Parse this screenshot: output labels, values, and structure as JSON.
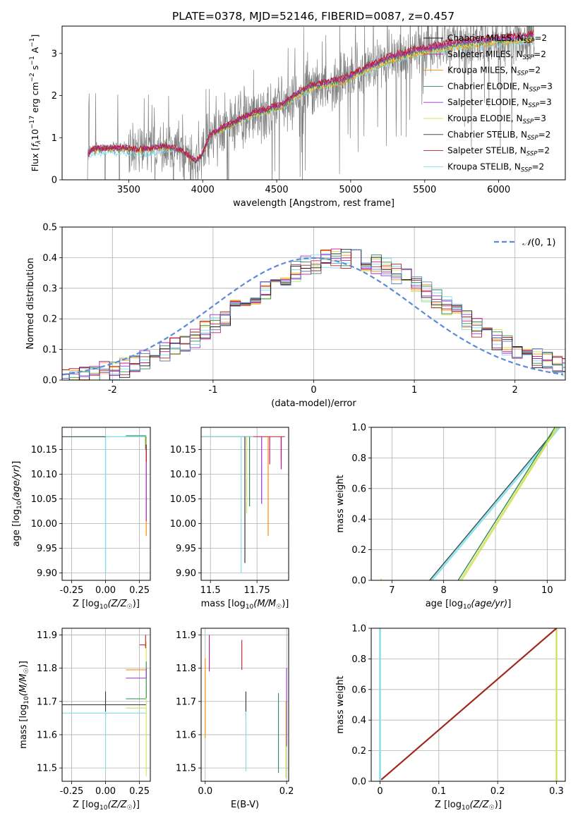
{
  "figure_title": "PLATE=0378, MJD=52146, FIBERID=0087, z=0.457",
  "colors": {
    "data": "#808080",
    "Chabrier MILES": "#1a1a1a",
    "Salpeter MILES": "#c71585",
    "Kroupa MILES": "#ff8c00",
    "Chabrier ELODIE": "#2e8b57",
    "Salpeter ELODIE": "#9932cc",
    "Kroupa ELODIE": "#d4e157",
    "Chabrier STELIB": "#333333",
    "Salpeter STELIB": "#b22222",
    "Kroupa STELIB": "#80deea",
    "normal": "#5b8bd6",
    "brown_line": "#a0291c"
  },
  "chart_data": [
    {
      "id": "spectrum",
      "type": "line",
      "xlabel": "wavelength [Angstrom, rest frame]",
      "xlim": [
        3050,
        6450
      ],
      "ylim": [
        0,
        3.65
      ],
      "xticks": [
        3500,
        4000,
        4500,
        5000,
        5500,
        6000
      ],
      "yticks": [
        0,
        1,
        2,
        3
      ],
      "grid": false,
      "legend_position": "top-right",
      "legend": [
        {
          "label": "Chabrier MILES, N",
          "sub": "SSP",
          "suffix": "=2"
        },
        {
          "label": "Salpeter MILES, N",
          "sub": "SSP",
          "suffix": "=2"
        },
        {
          "label": "Kroupa MILES, N",
          "sub": "SSP",
          "suffix": "=2"
        },
        {
          "label": "Chabrier ELODIE, N",
          "sub": "SSP",
          "suffix": "=3"
        },
        {
          "label": "Salpeter ELODIE, N",
          "sub": "SSP",
          "suffix": "=3"
        },
        {
          "label": "Kroupa ELODIE, N",
          "sub": "SSP",
          "suffix": "=3"
        },
        {
          "label": "Chabrier STELIB, N",
          "sub": "SSP",
          "suffix": "=2"
        },
        {
          "label": "Salpeter STELIB, N",
          "sub": "SSP",
          "suffix": "=2"
        },
        {
          "label": "Kroupa STELIB, N",
          "sub": "SSP",
          "suffix": "=2"
        }
      ],
      "model_continuum": [
        [
          3220,
          0.55
        ],
        [
          3250,
          0.72
        ],
        [
          3350,
          0.75
        ],
        [
          3450,
          0.75
        ],
        [
          3550,
          0.72
        ],
        [
          3650,
          0.74
        ],
        [
          3750,
          0.8
        ],
        [
          3850,
          0.7
        ],
        [
          3950,
          0.45
        ],
        [
          3990,
          0.55
        ],
        [
          4050,
          1.05
        ],
        [
          4150,
          1.25
        ],
        [
          4250,
          1.42
        ],
        [
          4350,
          1.58
        ],
        [
          4450,
          1.66
        ],
        [
          4550,
          1.8
        ],
        [
          4650,
          2.05
        ],
        [
          4750,
          2.22
        ],
        [
          4850,
          2.3
        ],
        [
          4950,
          2.35
        ],
        [
          5050,
          2.55
        ],
        [
          5150,
          2.7
        ],
        [
          5250,
          2.85
        ],
        [
          5350,
          2.95
        ],
        [
          5450,
          3.05
        ],
        [
          5550,
          3.1
        ],
        [
          5650,
          3.18
        ],
        [
          5750,
          3.22
        ],
        [
          5850,
          3.25
        ],
        [
          5950,
          3.3
        ],
        [
          6050,
          3.32
        ],
        [
          6150,
          3.35
        ],
        [
          6230,
          3.4
        ]
      ]
    },
    {
      "id": "residuals",
      "type": "line",
      "xlabel": "(data-model)/error",
      "ylabel": "Normed distribution",
      "xlim": [
        -2.5,
        2.5
      ],
      "ylim": [
        0,
        0.5
      ],
      "xticks": [
        -2,
        -1,
        0,
        1,
        2
      ],
      "yticks": [
        0,
        0.1,
        0.2,
        0.3,
        0.4,
        0.5
      ],
      "grid": true,
      "legend_position": "top-right",
      "legend": [
        "N(0,1)"
      ],
      "normal_curve": {
        "mean": 0,
        "sigma": 1
      }
    },
    {
      "id": "age_vs_Z",
      "type": "line",
      "xlabel": "Z [log10(Z/Z☉)]",
      "ylabel": "age [log10(age/yr)]",
      "xlim": [
        -0.32,
        0.33
      ],
      "ylim": [
        9.885,
        10.195
      ],
      "xticks": [
        -0.25,
        0.0,
        0.25
      ],
      "yticks": [
        9.9,
        9.95,
        10.0,
        10.05,
        10.1,
        10.15
      ],
      "grid": true
    },
    {
      "id": "age_vs_mass",
      "type": "line",
      "xlabel": "mass [log10(M/M☉)]",
      "xlim": [
        11.45,
        11.92
      ],
      "ylim": [
        9.885,
        10.195
      ],
      "xticks": [
        11.5,
        11.75
      ],
      "yticks": [
        9.9,
        9.95,
        10.0,
        10.05,
        10.1,
        10.15
      ],
      "grid": true
    },
    {
      "id": "massweight_vs_age",
      "type": "line",
      "xlabel": "age [log10(age/yr)]",
      "ylabel": "mass weight",
      "xlim": [
        6.6,
        10.35
      ],
      "ylim": [
        0,
        1
      ],
      "xticks": [
        7,
        8,
        9,
        10
      ],
      "yticks": [
        0,
        0.2,
        0.4,
        0.6,
        0.8,
        1.0
      ],
      "grid": true
    },
    {
      "id": "mass_vs_Z",
      "type": "line",
      "xlabel": "Z [log10(Z/Z☉)]",
      "ylabel": "mass [log10(M/M☉)]",
      "xlim": [
        -0.32,
        0.33
      ],
      "ylim": [
        11.46,
        11.92
      ],
      "xticks": [
        -0.25,
        0.0,
        0.25
      ],
      "yticks": [
        11.5,
        11.6,
        11.7,
        11.8,
        11.9
      ],
      "grid": true
    },
    {
      "id": "mass_vs_ebv",
      "type": "line",
      "xlabel": "E(B-V)",
      "xlim": [
        -0.01,
        0.205
      ],
      "ylim": [
        11.46,
        11.92
      ],
      "xticks": [
        0.0,
        0.2
      ],
      "yticks": [
        11.5,
        11.6,
        11.7,
        11.8,
        11.9
      ],
      "grid": true
    },
    {
      "id": "massweight_vs_Z",
      "type": "line",
      "xlabel": "Z [log10(Z/Z☉)]",
      "ylabel": "mass weight",
      "xlim": [
        -0.015,
        0.315
      ],
      "ylim": [
        0,
        1
      ],
      "xticks": [
        0.0,
        0.1,
        0.2,
        0.3
      ],
      "yticks": [
        0,
        0.2,
        0.4,
        0.6,
        0.8,
        1.0
      ],
      "grid": true
    }
  ]
}
